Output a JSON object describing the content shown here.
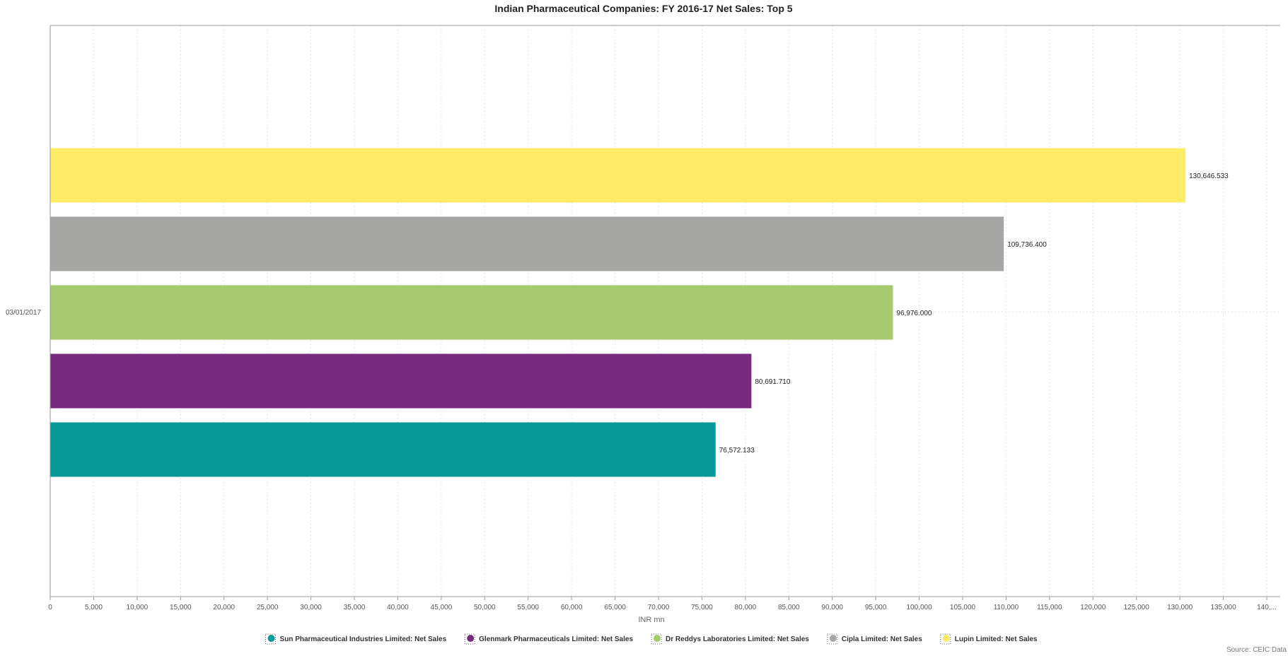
{
  "chart_data": {
    "type": "bar",
    "orientation": "horizontal",
    "title": "Indian Pharmaceutical Companies: FY 2016-17 Net Sales: Top 5",
    "xlabel": "INR mn",
    "ylabel": "",
    "categories": [
      "03/01/2017"
    ],
    "xlim": [
      0,
      140000
    ],
    "x_tick_step": 5000,
    "x_ticks": [
      "0",
      "5,000",
      "10,000",
      "15,000",
      "20,000",
      "25,000",
      "30,000",
      "35,000",
      "40,000",
      "45,000",
      "50,000",
      "55,000",
      "60,000",
      "65,000",
      "70,000",
      "75,000",
      "80,000",
      "85,000",
      "90,000",
      "95,000",
      "100,000",
      "105,000",
      "110,000",
      "115,000",
      "120,000",
      "125,000",
      "130,000",
      "135,000",
      "140,..."
    ],
    "grid": "vertical dotted",
    "legend_position": "bottom-center",
    "series": [
      {
        "name": "Sun Pharmaceutical Industries Limited: Net Sales",
        "values": [
          76572.133
        ],
        "value_label": "76,572.133",
        "color": "#05999A"
      },
      {
        "name": "Glenmark Pharmaceuticals Limited: Net Sales",
        "values": [
          80691.71
        ],
        "value_label": "80,691.710",
        "color": "#782B7E"
      },
      {
        "name": "Dr Reddys Laboratories Limited: Net Sales",
        "values": [
          96976.0
        ],
        "value_label": "96,976.000",
        "color": "#A5CA6E"
      },
      {
        "name": "Cipla Limited: Net Sales",
        "values": [
          109736.4
        ],
        "value_label": "109,736.400",
        "color": "#A6A6A4"
      },
      {
        "name": "Lupin Limited: Net Sales",
        "values": [
          130646.533
        ],
        "value_label": "130,646.533",
        "color": "#FFEB65"
      }
    ],
    "source": "Source: CEIC Data"
  }
}
